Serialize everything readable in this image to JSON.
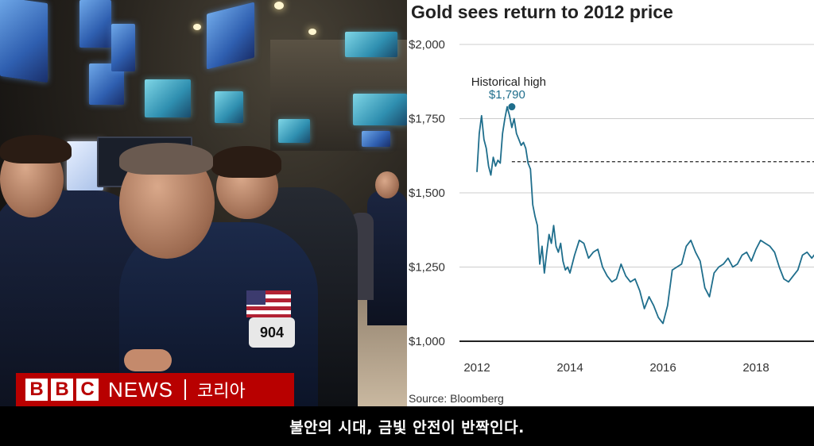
{
  "photo": {
    "description_icon": "trading-floor-photo",
    "badge_number": "904"
  },
  "brand": {
    "logo_letters": [
      "B",
      "B",
      "C"
    ],
    "news": "NEWS",
    "region": "코리아",
    "color": "#b80000"
  },
  "subtitle": "불안의 시대, 금빛 안전이 반짝인다.",
  "chart_data": {
    "type": "line",
    "title": "Gold sees return to 2012 price",
    "source": "Source: Bloomberg",
    "line_color": "#1f6e8c",
    "ylim": [
      1000,
      2000
    ],
    "yticks": [
      1000,
      1250,
      1500,
      1750,
      2000
    ],
    "ytick_labels": [
      "$1,000",
      "$1,250",
      "$1,500",
      "$1,750",
      "$2,000"
    ],
    "xlim": [
      2012,
      2019.5
    ],
    "xticks": [
      2012,
      2014,
      2016,
      2018
    ],
    "xtick_labels": [
      "2012",
      "2014",
      "2016",
      "2018"
    ],
    "grid": true,
    "reference_line": {
      "value": 1605,
      "style": "dashed"
    },
    "annotation": {
      "label": "Historical high",
      "value_label": "$1,790",
      "x": 2012.75,
      "y": 1790
    },
    "series": [
      {
        "x": [
          2012.0,
          2012.05,
          2012.1,
          2012.15,
          2012.2,
          2012.25,
          2012.3,
          2012.35,
          2012.4,
          2012.45,
          2012.5,
          2012.55,
          2012.6,
          2012.65,
          2012.7,
          2012.75,
          2012.8,
          2012.85,
          2012.9,
          2012.95,
          2013.0,
          2013.05,
          2013.1,
          2013.15,
          2013.2,
          2013.25,
          2013.3,
          2013.35,
          2013.4,
          2013.45,
          2013.5,
          2013.55,
          2013.6,
          2013.65,
          2013.7,
          2013.75,
          2013.8,
          2013.85,
          2013.9,
          2013.95,
          2014.0,
          2014.1,
          2014.2,
          2014.3,
          2014.4,
          2014.5,
          2014.6,
          2014.7,
          2014.8,
          2014.9,
          2015.0,
          2015.1,
          2015.2,
          2015.3,
          2015.4,
          2015.5,
          2015.6,
          2015.7,
          2015.8,
          2015.9,
          2016.0,
          2016.1,
          2016.2,
          2016.3,
          2016.4,
          2016.5,
          2016.6,
          2016.7,
          2016.8,
          2016.9,
          2017.0,
          2017.1,
          2017.2,
          2017.3,
          2017.4,
          2017.5,
          2017.6,
          2017.7,
          2017.8,
          2017.9,
          2018.0,
          2018.1,
          2018.2,
          2018.3,
          2018.4,
          2018.5,
          2018.6,
          2018.7,
          2018.8,
          2018.9,
          2019.0,
          2019.1,
          2019.2,
          2019.3,
          2019.4,
          2019.5
        ],
        "values": [
          1570,
          1700,
          1760,
          1680,
          1650,
          1590,
          1560,
          1620,
          1590,
          1610,
          1600,
          1700,
          1750,
          1790,
          1760,
          1720,
          1750,
          1700,
          1680,
          1660,
          1670,
          1650,
          1600,
          1580,
          1460,
          1420,
          1390,
          1260,
          1320,
          1230,
          1300,
          1360,
          1330,
          1390,
          1320,
          1300,
          1330,
          1270,
          1240,
          1250,
          1230,
          1290,
          1340,
          1330,
          1280,
          1300,
          1310,
          1250,
          1220,
          1200,
          1210,
          1260,
          1220,
          1200,
          1210,
          1170,
          1110,
          1150,
          1120,
          1080,
          1060,
          1120,
          1240,
          1250,
          1260,
          1320,
          1340,
          1300,
          1270,
          1180,
          1150,
          1230,
          1250,
          1260,
          1280,
          1250,
          1260,
          1290,
          1300,
          1270,
          1310,
          1340,
          1330,
          1320,
          1300,
          1250,
          1210,
          1200,
          1220,
          1240,
          1290,
          1300,
          1280,
          1300,
          1320,
          1340
        ]
      }
    ]
  }
}
